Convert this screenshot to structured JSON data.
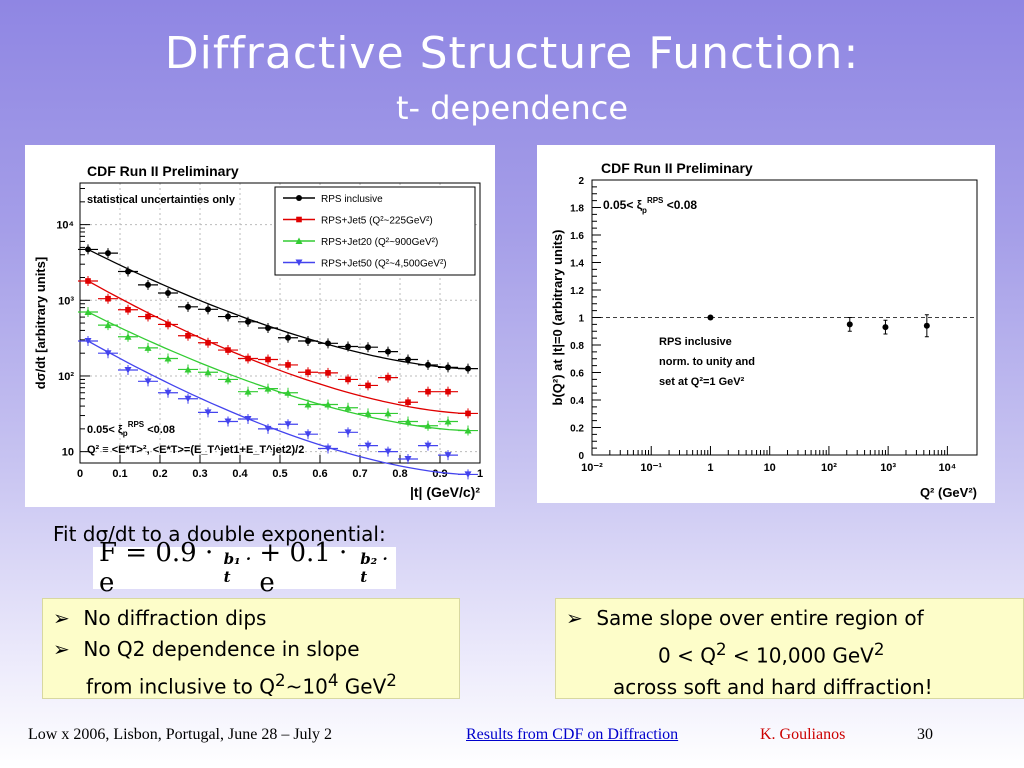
{
  "slide": {
    "title": "Diffractive Structure Function:",
    "subtitle": "t- dependence",
    "fit_caption": "Fit dσ/dt to a double exponential:",
    "formula": {
      "prefix": "F = 0.9 · e",
      "exp1": "b₁ · t",
      "mid": " + 0.1 · e",
      "exp2": "b₂ · t"
    },
    "left_box": {
      "bullet_symbol": "➢",
      "line1": "No diffraction dips",
      "line2": "No Q2 dependence in slope",
      "line3_pre": "from inclusive to Q",
      "line3_sup1": "2",
      "line3_mid": "~10",
      "line3_sup2": "4",
      "line3_post": " GeV",
      "line3_sup3": "2"
    },
    "right_box": {
      "bullet_symbol": "➢",
      "line1": "Same slope over entire region of",
      "line2_pre": "0 < Q",
      "line2_sup": "2",
      "line2_post": " < 10,000 GeV",
      "line2_sup2": "2",
      "line3": "across soft and hard diffraction!"
    },
    "footer": {
      "conference": "Low x 2006, Lisbon, Portugal, June 28 – July 2",
      "link": "Results from CDF on Diffraction",
      "author": "K. Goulianos",
      "page": "30"
    }
  },
  "chart_data": [
    {
      "type": "scatter",
      "title": "CDF Run II Preliminary",
      "note": "statistical uncertainties only",
      "xlabel": "|t| (GeV/c)²",
      "ylabel": "dσ/dt [arbitrary units]",
      "xlim": [
        0,
        1
      ],
      "ylim_log10": [
        0.85,
        4.55
      ],
      "log_y": true,
      "x_ticks": [
        "0",
        "0.1",
        "0.2",
        "0.3",
        "0.4",
        "0.5",
        "0.6",
        "0.7",
        "0.8",
        "0.9",
        "1"
      ],
      "y_ticks": [
        "10",
        "10²",
        "10³",
        "10⁴"
      ],
      "legend_position": "top-right",
      "annotation_line1": "0.05< ξ",
      "annotation_line1_sup": "RPS",
      "annotation_line1_sub": "p",
      "annotation_line1_post": " <0.08",
      "annotation_line2": "Q² ≡ <E*T>²,  <E*T>=(E_T^jet1+E_T^jet2)/2",
      "series": [
        {
          "name": "RPS inclusive",
          "color": "#000000",
          "marker": "circle",
          "x": [
            0.02,
            0.07,
            0.12,
            0.17,
            0.22,
            0.27,
            0.32,
            0.37,
            0.42,
            0.47,
            0.52,
            0.57,
            0.62,
            0.67,
            0.72,
            0.77,
            0.82,
            0.87,
            0.92,
            0.97
          ],
          "y": [
            4700,
            4200,
            2400,
            1600,
            1250,
            820,
            760,
            610,
            520,
            430,
            320,
            290,
            270,
            245,
            240,
            210,
            165,
            140,
            130,
            125
          ]
        },
        {
          "name": "RPS+Jet5 (Q²~225GeV²)",
          "color": "#e00000",
          "marker": "square",
          "x": [
            0.02,
            0.07,
            0.12,
            0.17,
            0.22,
            0.27,
            0.32,
            0.37,
            0.42,
            0.47,
            0.52,
            0.57,
            0.62,
            0.67,
            0.72,
            0.77,
            0.82,
            0.87,
            0.92,
            0.97
          ],
          "y": [
            1800,
            1050,
            750,
            610,
            480,
            340,
            275,
            220,
            170,
            165,
            140,
            112,
            110,
            90,
            75,
            95,
            45,
            62,
            62,
            32
          ]
        },
        {
          "name": "RPS+Jet20 (Q²~900GeV²)",
          "color": "#33cc33",
          "marker": "triangle-up",
          "x": [
            0.02,
            0.07,
            0.12,
            0.17,
            0.22,
            0.27,
            0.32,
            0.37,
            0.42,
            0.47,
            0.52,
            0.57,
            0.62,
            0.67,
            0.72,
            0.77,
            0.82,
            0.87,
            0.92,
            0.97
          ],
          "y": [
            700,
            470,
            330,
            235,
            170,
            122,
            112,
            90,
            62,
            68,
            60,
            42,
            42,
            38,
            32,
            32,
            25,
            22,
            25,
            19
          ]
        },
        {
          "name": "RPS+Jet50 (Q²~4,500GeV²)",
          "color": "#4444ee",
          "marker": "triangle-down",
          "x": [
            0.02,
            0.07,
            0.12,
            0.17,
            0.22,
            0.27,
            0.32,
            0.37,
            0.42,
            0.47,
            0.52,
            0.57,
            0.62,
            0.67,
            0.72,
            0.77,
            0.82,
            0.87,
            0.92,
            0.97
          ],
          "y": [
            290,
            200,
            120,
            85,
            60,
            50,
            33,
            25,
            27,
            20,
            23,
            17,
            11,
            18,
            12,
            10,
            8,
            12,
            9,
            5
          ]
        }
      ]
    },
    {
      "type": "scatter",
      "title": "CDF Run II Preliminary",
      "xlabel": "Q² (GeV²)",
      "ylabel": "b(Q²) at |t|=0 (arbitrary units)",
      "log_x": true,
      "xlim_log10": [
        -2,
        4.5
      ],
      "ylim": [
        0,
        2
      ],
      "x_ticks": [
        "10⁻²",
        "10⁻¹",
        "1",
        "10",
        "10²",
        "10³",
        "10⁴"
      ],
      "y_ticks": [
        "0",
        "0.2",
        "0.4",
        "0.6",
        "0.8",
        "1",
        "1.2",
        "1.4",
        "1.6",
        "1.8",
        "2"
      ],
      "annotation_pre": "0.05< ξ",
      "annotation_sup": "RPS",
      "annotation_sub": "p",
      "annotation_post": " <0.08",
      "notes": [
        "RPS inclusive",
        "norm. to unity and",
        "set at Q²=1 GeV²"
      ],
      "reference_line_y": 1,
      "points": [
        {
          "x": 1,
          "y": 1.0,
          "err": 0.0
        },
        {
          "x": 225,
          "y": 0.95,
          "err": 0.05
        },
        {
          "x": 900,
          "y": 0.93,
          "err": 0.05
        },
        {
          "x": 4500,
          "y": 0.94,
          "err": 0.08
        }
      ]
    }
  ]
}
